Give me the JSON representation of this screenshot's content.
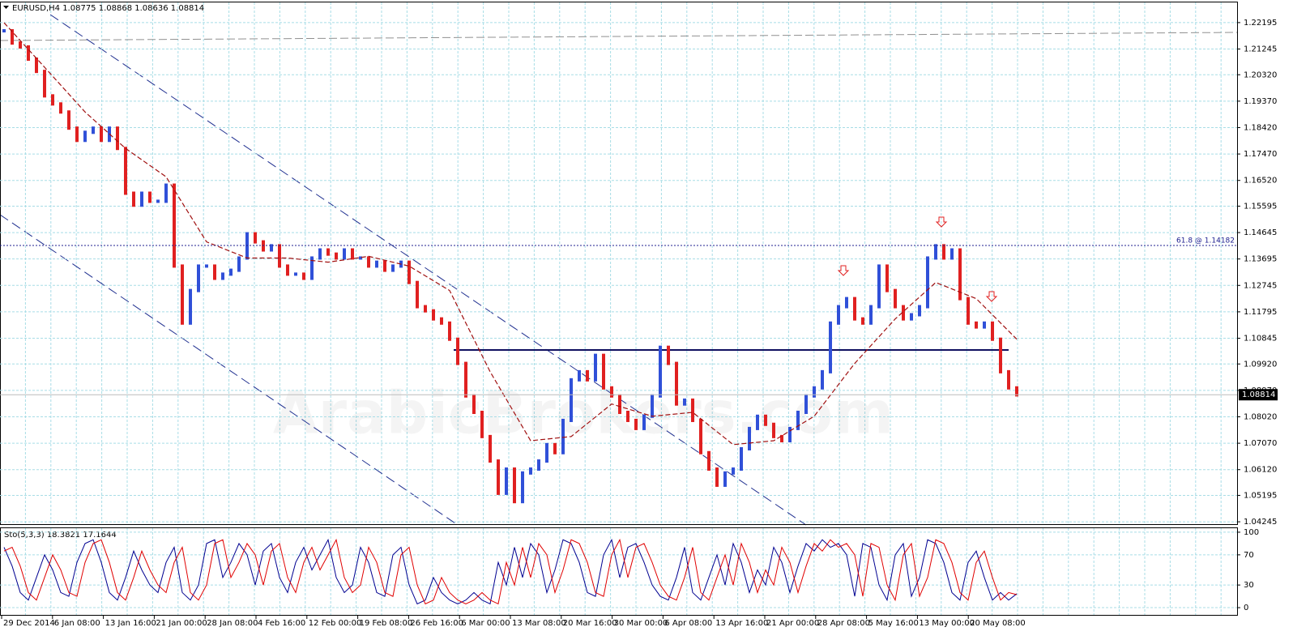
{
  "chart_data": [
    {
      "type": "bar",
      "title": "EURUSD,H4  1.08775 1.08868 1.08636 1.08814",
      "watermark": "ArabicBrokers.com",
      "x_labels": [
        "29 Dec 2014",
        "6 Jan 08:00",
        "13 Jan 16:00",
        "21 Jan 00:00",
        "28 Jan 08:00",
        "4 Feb 16:00",
        "12 Feb 00:00",
        "19 Feb 08:00",
        "26 Feb 16:00",
        "6 Mar 00:00",
        "13 Mar 08:00",
        "20 Mar 16:00",
        "30 Mar 00:00",
        "6 Apr 08:00",
        "13 Apr 16:00",
        "21 Apr 00:00",
        "28 Apr 08:00",
        "5 May 16:00",
        "13 May 00:00",
        "20 May 08:00"
      ],
      "values": [
        1.219,
        1.2146,
        1.2132,
        1.2088,
        1.2044,
        1.1956,
        1.1927,
        1.1898,
        1.184,
        1.1796,
        1.1825,
        1.184,
        1.1796,
        1.184,
        1.1767,
        1.1606,
        1.1563,
        1.1606,
        1.1577,
        1.1577,
        1.1635,
        1.1344,
        1.1139,
        1.1256,
        1.1344,
        1.1344,
        1.13,
        1.1315,
        1.1329,
        1.1373,
        1.146,
        1.1431,
        1.1402,
        1.1417,
        1.1344,
        1.1315,
        1.1315,
        1.13,
        1.1373,
        1.1402,
        1.1387,
        1.1373,
        1.1402,
        1.1373,
        1.1373,
        1.1344,
        1.1358,
        1.1329,
        1.1344,
        1.1358,
        1.1285,
        1.1198,
        1.1183,
        1.1154,
        1.1139,
        1.1081,
        1.0994,
        1.0877,
        1.0818,
        1.0731,
        1.0643,
        1.0527,
        1.0614,
        1.0497,
        1.06,
        1.0614,
        1.0643,
        1.0702,
        1.0673,
        1.0789,
        1.0935,
        1.0964,
        1.0935,
        1.1023,
        1.0906,
        1.0877,
        1.0818,
        1.0789,
        1.076,
        1.0804,
        1.0877,
        1.1052,
        1.0994,
        1.0848,
        1.0862,
        1.0789,
        1.0673,
        1.0614,
        1.0556,
        1.06,
        1.0614,
        1.0687,
        1.076,
        1.0804,
        1.0775,
        1.0731,
        1.0716,
        1.076,
        1.0818,
        1.0877,
        1.0906,
        1.0964,
        1.1139,
        1.1198,
        1.1227,
        1.1154,
        1.1139,
        1.1198,
        1.1344,
        1.1256,
        1.1198,
        1.1154,
        1.1169,
        1.1198,
        1.1373,
        1.1417,
        1.1373,
        1.1402,
        1.1227,
        1.1139,
        1.1125,
        1.1139,
        1.1081,
        1.0964,
        1.0906,
        1.0881
      ],
      "up_color": "#3050d8",
      "down_color": "#e02020",
      "moving_average": {
        "color": "#a01010",
        "x": [
          0,
          5,
          10,
          15,
          20,
          25,
          30,
          35,
          40,
          45,
          50,
          55,
          60,
          65,
          70,
          75,
          80,
          85,
          90,
          95,
          100,
          105,
          110,
          115,
          120,
          125
        ],
        "values": [
          1.2219,
          1.2059,
          1.1898,
          1.1767,
          1.1665,
          1.1431,
          1.1373,
          1.1373,
          1.1358,
          1.1379,
          1.1344,
          1.1256,
          1.0964,
          1.0716,
          1.0731,
          1.0848,
          1.0804,
          1.0818,
          1.0702,
          1.0716,
          1.0804,
          1.0994,
          1.1154,
          1.1285,
          1.1227,
          1.1081
        ]
      },
      "fib_level": {
        "value": 1.14182,
        "label": "61.8 @ 1.14182"
      },
      "last_price": 1.08814,
      "ylim": [
        1.0416,
        1.2292
      ],
      "yticks": [
        1.22195,
        1.21245,
        {
          "value": 1.2032,
          "label": "1.20320"
        },
        {
          "value": 1.1937,
          "label": "1.19370"
        },
        {
          "value": 1.1842,
          "label": "1.18420"
        },
        {
          "value": 1.1747,
          "label": "1.17470"
        },
        {
          "value": 1.1652,
          "label": "1.16520"
        },
        1.15595,
        1.14645,
        1.13695,
        1.12745,
        1.11795,
        1.10845,
        {
          "value": 1.0992,
          "label": "1.09920"
        },
        {
          "value": 1.0897,
          "label": "1.08970"
        },
        {
          "value": 1.0802,
          "label": "1.08020"
        },
        {
          "value": 1.0707,
          "label": "1.07070"
        },
        {
          "value": 1.0612,
          "label": "1.06120"
        },
        1.05195,
        1.04245
      ],
      "grid": true
    },
    {
      "type": "line",
      "title": "Sto(5,3,3) 18.3821 17.1644",
      "ylim": [
        -9.6,
        105.3
      ],
      "yticks": [
        0,
        30,
        70,
        100
      ],
      "series": [
        {
          "color": "#000090",
          "values": [
            80,
            55,
            20,
            10,
            40,
            70,
            50,
            20,
            15,
            60,
            85,
            90,
            60,
            20,
            10,
            40,
            75,
            50,
            30,
            20,
            60,
            80,
            20,
            10,
            30,
            85,
            90,
            40,
            60,
            85,
            70,
            30,
            75,
            85,
            40,
            20,
            60,
            80,
            50,
            70,
            90,
            40,
            20,
            30,
            80,
            60,
            20,
            15,
            70,
            80,
            30,
            5,
            10,
            40,
            20,
            10,
            5,
            10,
            20,
            10,
            5,
            60,
            30,
            80,
            40,
            85,
            70,
            20,
            50,
            90,
            85,
            60,
            20,
            15,
            70,
            90,
            40,
            80,
            85,
            60,
            30,
            15,
            10,
            40,
            80,
            20,
            10,
            40,
            70,
            30,
            85,
            60,
            20,
            50,
            30,
            80,
            60,
            20,
            55,
            85,
            75,
            90,
            80,
            85,
            70,
            15,
            85,
            80,
            30,
            10,
            70,
            85,
            15,
            40,
            90,
            85,
            60,
            20,
            10,
            60,
            75,
            40,
            10,
            20,
            10,
            18.4
          ]
        },
        {
          "color": "#e00000",
          "values": [
            75,
            80,
            55,
            20,
            10,
            40,
            70,
            50,
            20,
            15,
            60,
            85,
            90,
            60,
            20,
            10,
            40,
            75,
            50,
            30,
            20,
            60,
            80,
            20,
            10,
            30,
            85,
            90,
            40,
            60,
            85,
            70,
            30,
            75,
            85,
            40,
            20,
            60,
            80,
            50,
            70,
            90,
            40,
            20,
            30,
            80,
            60,
            20,
            15,
            70,
            80,
            30,
            5,
            10,
            40,
            20,
            10,
            5,
            10,
            20,
            10,
            5,
            60,
            30,
            80,
            40,
            85,
            70,
            20,
            50,
            90,
            85,
            60,
            20,
            15,
            70,
            90,
            40,
            80,
            85,
            60,
            30,
            15,
            10,
            40,
            80,
            20,
            10,
            40,
            70,
            30,
            85,
            60,
            20,
            50,
            30,
            80,
            60,
            20,
            55,
            85,
            75,
            90,
            80,
            85,
            70,
            15,
            85,
            80,
            30,
            10,
            70,
            85,
            15,
            40,
            90,
            85,
            60,
            20,
            10,
            60,
            75,
            40,
            10,
            20,
            17.2
          ]
        }
      ],
      "grid": true
    }
  ]
}
